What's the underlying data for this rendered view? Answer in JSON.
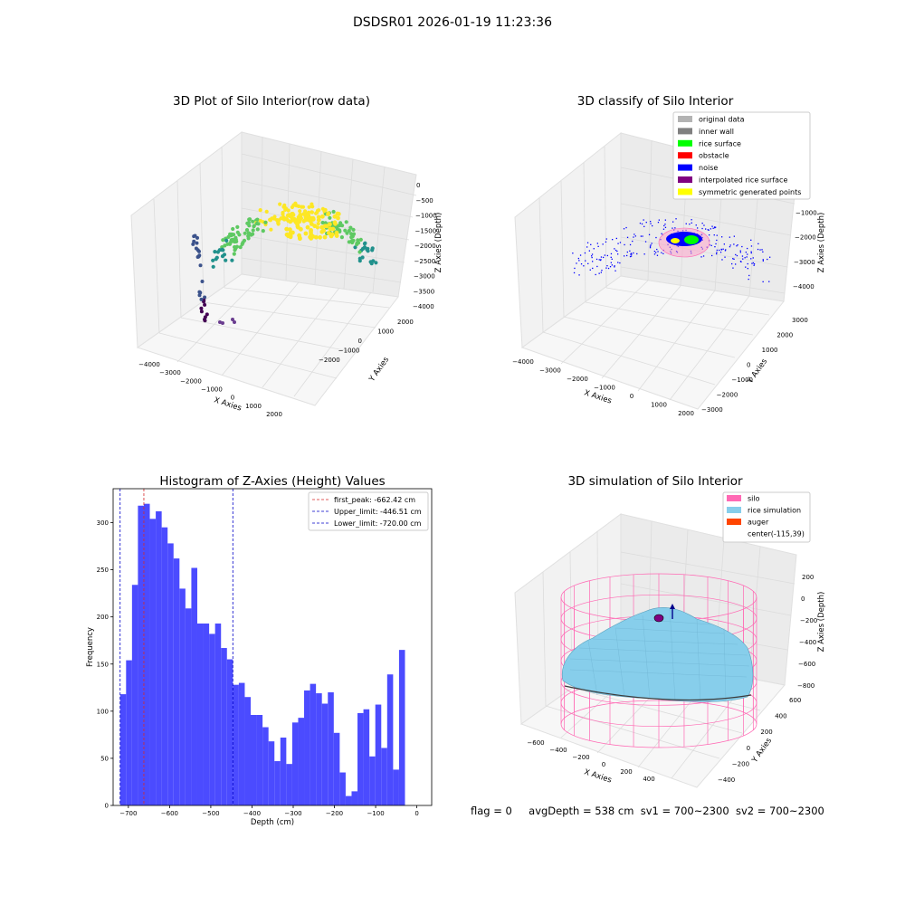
{
  "suptitle": "DSDSR01 2026-01-19 11:23:36",
  "status": {
    "flag": "flag = 0",
    "avg_depth": "avgDepth = 538 cm",
    "sv1": "sv1 = 700~2300",
    "sv2": "sv2 = 700~2300"
  },
  "colors": {
    "hist_bar": "#4b4bff",
    "first_peak": "#d62728",
    "limit": "#0000c8",
    "silo": "#ff69b4",
    "rice_sim": "#87cefa",
    "auger": "#ff4500",
    "noise": "#0000ff",
    "rice_surface": "#00ff00"
  },
  "chart_data": [
    {
      "type": "scatter",
      "title": "3D Plot of Silo Interior(row data)",
      "xlabel": "X Axies",
      "ylabel": "Y Axies",
      "zlabel": "Z Axies (Depth)",
      "xticks": [
        "−4000",
        "−3000",
        "−2000",
        "−1000",
        "0",
        "1000",
        "2000"
      ],
      "yticks": [
        "−2000",
        "−1000",
        "0",
        "1000",
        "2000"
      ],
      "zticks": [
        "0",
        "−500",
        "−1000",
        "−1500",
        "−2000",
        "−2500",
        "−3000",
        "−3500",
        "−4000"
      ],
      "colormap": "viridis"
    },
    {
      "type": "scatter",
      "title": "3D classify of Silo Interior",
      "xlabel": "X Axies",
      "ylabel": "Y Axies",
      "zlabel": "Z Axies (Depth)",
      "xticks": [
        "−4000",
        "−3000",
        "−2000",
        "−1000",
        "0",
        "1000",
        "2000"
      ],
      "yticks": [
        "−3000",
        "−2000",
        "−1000",
        "0",
        "1000",
        "2000",
        "3000"
      ],
      "zticks": [
        "000",
        "−1000",
        "−2000",
        "−3000",
        "−4000"
      ],
      "legend": [
        {
          "label": "original data",
          "color": "#b3b3b3"
        },
        {
          "label": "inner wall",
          "color": "#808080"
        },
        {
          "label": "rice surface",
          "color": "#00ff00"
        },
        {
          "label": "obstacle",
          "color": "#ff0000"
        },
        {
          "label": "noise",
          "color": "#0000ff"
        },
        {
          "label": "interpolated rice surface",
          "color": "#800080"
        },
        {
          "label": "symmetric generated points",
          "color": "#ffff00"
        }
      ]
    },
    {
      "type": "bar",
      "title": "Histogram of Z-Axies (Height) Values",
      "xlabel": "Depth (cm)",
      "ylabel": "Frequency",
      "xlim": [
        -737,
        36
      ],
      "ylim": [
        0,
        336
      ],
      "xticks": [
        -700,
        -600,
        -500,
        -400,
        -300,
        -200,
        -100,
        0
      ],
      "yticks": [
        0,
        50,
        100,
        150,
        200,
        250,
        300
      ],
      "bin_width": 14.4,
      "bin_start": -720,
      "values": [
        118,
        154,
        234,
        318,
        320,
        304,
        312,
        295,
        278,
        262,
        230,
        209,
        252,
        193,
        193,
        182,
        193,
        167,
        155,
        128,
        130,
        115,
        96,
        96,
        83,
        68,
        47,
        72,
        44,
        88,
        93,
        122,
        129,
        119,
        108,
        120,
        77,
        35,
        10,
        15,
        98,
        102,
        52,
        107,
        61,
        139,
        38,
        165
      ],
      "lines": [
        {
          "name": "first_peak: -662.42 cm",
          "x": -662.42,
          "color": "#d62728"
        },
        {
          "name": "Upper_limit: -446.51 cm",
          "x": -446.51,
          "color": "#0000c8"
        },
        {
          "name": "Lower_limit: -720.00 cm",
          "x": -720.0,
          "color": "#0000c8"
        }
      ]
    },
    {
      "type": "area",
      "title": "3D simulation of Silo Interior",
      "xlabel": "X Axies",
      "ylabel": "Y Axies",
      "zlabel": "Z Axies (Depth)",
      "xticks": [
        "−600",
        "−400",
        "−200",
        "0",
        "200",
        "400"
      ],
      "yticks": [
        "−400",
        "−200",
        "0",
        "200",
        "400",
        "600"
      ],
      "zticks": [
        "200",
        "0",
        "−200",
        "−400",
        "−600",
        "−800"
      ],
      "legend": [
        {
          "label": "silo",
          "color": "#ff69b4"
        },
        {
          "label": "rice simulation",
          "color": "#87ceeb"
        },
        {
          "label": "auger",
          "color": "#ff4500"
        },
        {
          "label": "center(-115,39)",
          "color": ""
        }
      ]
    }
  ]
}
